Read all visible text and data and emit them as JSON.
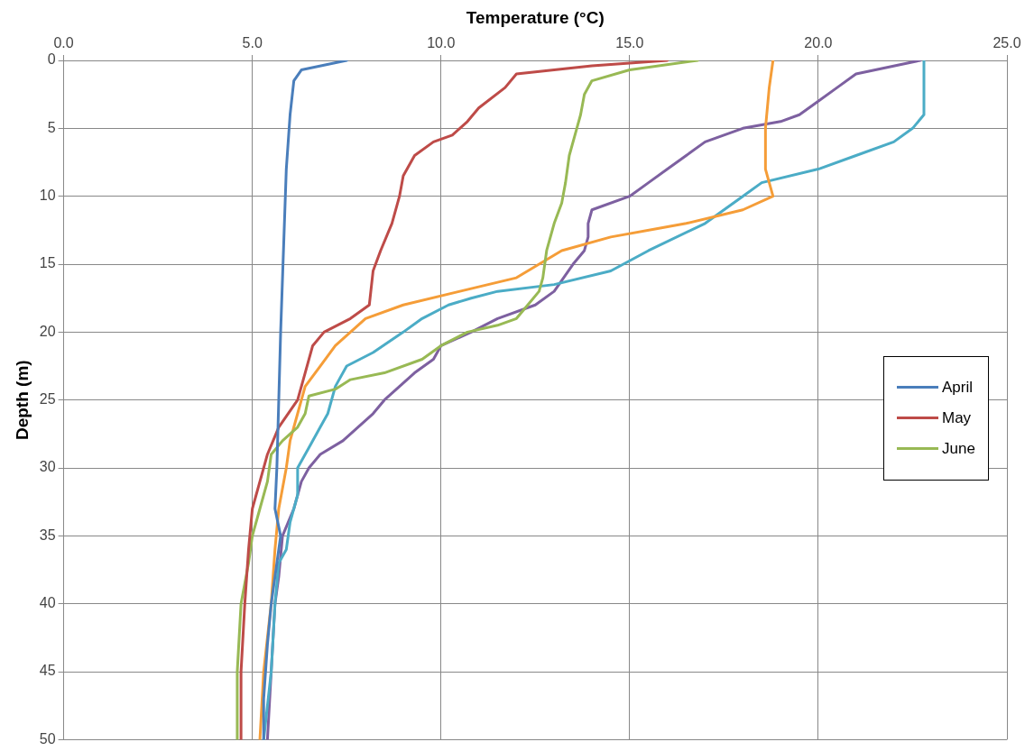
{
  "chart_data": {
    "type": "line",
    "xlabel": "Temperature (°C)",
    "ylabel": "Depth (m)",
    "xlim": [
      0,
      25
    ],
    "xticks": [
      {
        "value": 0,
        "label": "0.0"
      },
      {
        "value": 5,
        "label": "5.0"
      },
      {
        "value": 10,
        "label": "10.0"
      },
      {
        "value": 15,
        "label": "15.0"
      },
      {
        "value": 20,
        "label": "20.0"
      },
      {
        "value": 25,
        "label": "25.0"
      }
    ],
    "ylim": [
      50,
      0
    ],
    "yticks": [
      0,
      5,
      10,
      15,
      20,
      25,
      30,
      35,
      40,
      45,
      50
    ],
    "grid": true,
    "legend": "right",
    "marker": "none",
    "series": [
      {
        "name": "April",
        "color": "#4a7ebb",
        "x": [
          7.5,
          6.3,
          6.1,
          6.0,
          5.9,
          5.85,
          5.8,
          5.75,
          5.7,
          5.65,
          5.6,
          5.75,
          5.5,
          5.4,
          5.3,
          5.3
        ],
        "values": [
          0,
          0.7,
          1.5,
          4,
          8,
          12,
          16,
          20,
          25,
          30,
          33,
          35,
          40,
          43,
          47,
          50
        ]
      },
      {
        "name": "May",
        "color": "#be4b48",
        "x": [
          16.0,
          14,
          12,
          11.7,
          11,
          10.7,
          10.5,
          10.3,
          9.8,
          9.3,
          9,
          8.9,
          8.7,
          8.4,
          8.2,
          8.1,
          7.6,
          6.9,
          6.6,
          6.4,
          6.2,
          5.7,
          5.4,
          5.2,
          5.0,
          4.9,
          4.8,
          4.7,
          4.7
        ],
        "values": [
          0,
          0.4,
          1,
          2,
          3.5,
          4.5,
          5,
          5.5,
          6,
          7,
          8.5,
          10,
          12,
          14,
          15.5,
          18,
          19,
          20,
          21,
          23,
          25,
          27,
          29,
          31,
          33,
          36,
          40,
          45,
          50
        ]
      },
      {
        "name": "June",
        "color": "#98b954",
        "x": [
          16.8,
          15,
          14,
          13.8,
          13.7,
          13.6,
          13.4,
          13.3,
          13.2,
          13,
          12.8,
          12.7,
          12.6,
          12.3,
          12,
          11.5,
          10.7,
          10,
          9.5,
          8.5,
          7.6,
          7.2,
          6.5,
          6.4,
          6.2,
          5.8,
          5.5,
          5.4,
          5.2,
          5,
          4.9,
          4.7,
          4.6,
          4.6
        ],
        "values": [
          0,
          0.7,
          1.5,
          2.5,
          4,
          5,
          7,
          9,
          10.5,
          12,
          14,
          16,
          17,
          18,
          19,
          19.5,
          20,
          21,
          22,
          23,
          23.5,
          24.2,
          24.7,
          26,
          27,
          28,
          29,
          31,
          33,
          35,
          37,
          40,
          45,
          50
        ]
      },
      {
        "color": "#f59d38",
        "x": [
          18.8,
          18.7,
          18.6,
          18.6,
          18.7,
          18.8,
          18,
          16.5,
          14.5,
          13.2,
          12,
          10.5,
          9,
          8,
          7.2,
          6.8,
          6.4,
          6.2,
          6,
          5.9,
          5.7,
          5.6,
          5.5,
          5.3,
          5.2
        ],
        "values": [
          0,
          2,
          5,
          8,
          9,
          10,
          11,
          12,
          13,
          14,
          16,
          17,
          18,
          19,
          21,
          22.5,
          24,
          26,
          28,
          30,
          33,
          36,
          40,
          45,
          50
        ]
      },
      {
        "color": "#4bacc6",
        "x": [
          22.8,
          22.8,
          22.5,
          22,
          21,
          20,
          18.5,
          18,
          17.5,
          17,
          15.5,
          14.5,
          13,
          11.5,
          10.8,
          10.2,
          9.5,
          9,
          8.2,
          7.5,
          7.2,
          7,
          6.8,
          6.5,
          6.2,
          6.2,
          6,
          5.9,
          5.7,
          5.6,
          5.5,
          5.3
        ],
        "values": [
          0,
          4,
          5,
          6,
          7,
          8,
          9,
          10,
          11,
          12,
          14,
          15.5,
          16.5,
          17,
          17.5,
          18,
          19,
          20,
          21.5,
          22.5,
          24,
          26,
          27,
          28.5,
          30,
          32,
          34,
          36,
          37,
          40,
          45,
          50
        ]
      },
      {
        "color": "#7d60a0",
        "x": [
          22.7,
          21,
          20.5,
          20,
          19.5,
          19,
          18,
          17,
          16.5,
          16,
          15.5,
          15,
          14,
          13.9,
          13.9,
          13.8,
          13.5,
          13,
          12.5,
          11.5,
          10.8,
          10,
          9.8,
          9.3,
          8.9,
          8.5,
          8.2,
          7.8,
          7.4,
          6.8,
          6.5,
          6.3,
          6.1,
          5.8,
          5.7,
          5.6,
          5.5,
          5.4
        ],
        "values": [
          0,
          1,
          2,
          3,
          4,
          4.5,
          5,
          6,
          7,
          8,
          9,
          10,
          11,
          12,
          13,
          14,
          15,
          17,
          18,
          19,
          20,
          21,
          22,
          23,
          24,
          25,
          26,
          27,
          28,
          29,
          30,
          31,
          33,
          35,
          38,
          40,
          45,
          50
        ]
      }
    ]
  }
}
